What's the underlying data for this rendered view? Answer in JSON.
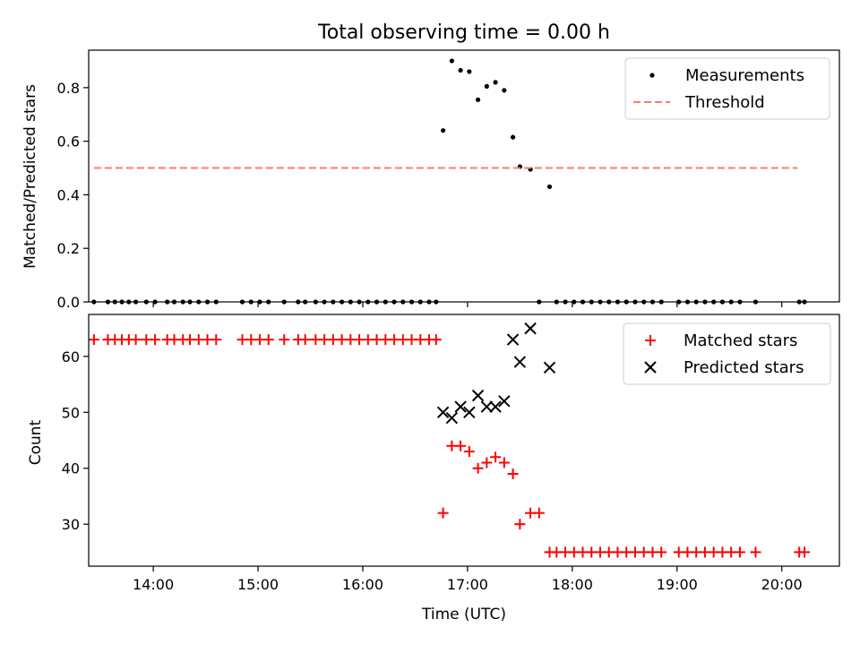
{
  "figure": {
    "title": "Total observing time = 0.00 h"
  },
  "chart_data": [
    {
      "type": "scatter",
      "panel": "top",
      "ylabel": "Matched/Predicted stars",
      "xlabel": "",
      "xlim": [
        "13:23",
        "20:33"
      ],
      "ylim": [
        0,
        0.94
      ],
      "yticks": [
        0.0,
        0.2,
        0.4,
        0.6,
        0.8
      ],
      "ytick_labels": [
        "0.0",
        "0.2",
        "0.4",
        "0.6",
        "0.8"
      ],
      "xticks": [
        "14:00",
        "15:00",
        "16:00",
        "17:00",
        "18:00",
        "19:00",
        "20:00"
      ],
      "show_xtick_labels": false,
      "legend_position": "top-right",
      "series": [
        {
          "name": "Measurements",
          "marker": "dot",
          "color": "#000000",
          "points": [
            [
              "13:26",
              0.0
            ],
            [
              "13:34",
              0.0
            ],
            [
              "13:38",
              0.0
            ],
            [
              "13:42",
              0.0
            ],
            [
              "13:46",
              0.0
            ],
            [
              "13:50",
              0.0
            ],
            [
              "13:56",
              0.0
            ],
            [
              "14:01",
              0.0
            ],
            [
              "14:08",
              0.0
            ],
            [
              "14:12",
              0.0
            ],
            [
              "14:17",
              0.0
            ],
            [
              "14:21",
              0.0
            ],
            [
              "14:26",
              0.0
            ],
            [
              "14:31",
              0.0
            ],
            [
              "14:36",
              0.0
            ],
            [
              "14:51",
              0.0
            ],
            [
              "14:56",
              0.0
            ],
            [
              "15:01",
              0.0
            ],
            [
              "15:06",
              0.0
            ],
            [
              "15:15",
              0.0
            ],
            [
              "15:23",
              0.0
            ],
            [
              "15:27",
              0.0
            ],
            [
              "15:33",
              0.0
            ],
            [
              "15:38",
              0.0
            ],
            [
              "15:43",
              0.0
            ],
            [
              "15:48",
              0.0
            ],
            [
              "15:53",
              0.0
            ],
            [
              "15:58",
              0.0
            ],
            [
              "16:03",
              0.0
            ],
            [
              "16:08",
              0.0
            ],
            [
              "16:13",
              0.0
            ],
            [
              "16:18",
              0.0
            ],
            [
              "16:23",
              0.0
            ],
            [
              "16:28",
              0.0
            ],
            [
              "16:33",
              0.0
            ],
            [
              "16:38",
              0.0
            ],
            [
              "16:42",
              0.0
            ],
            [
              "16:46",
              0.64
            ],
            [
              "16:51",
              0.9
            ],
            [
              "16:56",
              0.865
            ],
            [
              "17:01",
              0.86
            ],
            [
              "17:06",
              0.755
            ],
            [
              "17:11",
              0.805
            ],
            [
              "17:16",
              0.82
            ],
            [
              "17:21",
              0.79
            ],
            [
              "17:26",
              0.615
            ],
            [
              "17:30",
              0.505
            ],
            [
              "17:36",
              0.495
            ],
            [
              "17:47",
              0.43
            ],
            [
              "17:41",
              0.0
            ],
            [
              "17:51",
              0.0
            ],
            [
              "17:56",
              0.0
            ],
            [
              "18:01",
              0.0
            ],
            [
              "18:06",
              0.0
            ],
            [
              "18:11",
              0.0
            ],
            [
              "18:16",
              0.0
            ],
            [
              "18:21",
              0.0
            ],
            [
              "18:26",
              0.0
            ],
            [
              "18:31",
              0.0
            ],
            [
              "18:36",
              0.0
            ],
            [
              "18:41",
              0.0
            ],
            [
              "18:46",
              0.0
            ],
            [
              "18:51",
              0.0
            ],
            [
              "19:01",
              0.0
            ],
            [
              "19:06",
              0.0
            ],
            [
              "19:11",
              0.0
            ],
            [
              "19:16",
              0.0
            ],
            [
              "19:21",
              0.0
            ],
            [
              "19:26",
              0.0
            ],
            [
              "19:31",
              0.0
            ],
            [
              "19:36",
              0.0
            ],
            [
              "19:45",
              0.0
            ],
            [
              "20:10",
              0.0
            ],
            [
              "20:13",
              0.0
            ]
          ]
        },
        {
          "name": "Threshold",
          "line": "dashed",
          "color": "#ff7777",
          "points": [
            [
              "13:26",
              0.5
            ],
            [
              "20:09",
              0.5
            ]
          ]
        }
      ]
    },
    {
      "type": "scatter",
      "panel": "bottom",
      "ylabel": "Count",
      "xlabel": "Time (UTC)",
      "xlim": [
        "13:23",
        "20:33"
      ],
      "ylim": [
        22.5,
        67.5
      ],
      "yticks": [
        30,
        40,
        50,
        60
      ],
      "ytick_labels": [
        "30",
        "40",
        "50",
        "60"
      ],
      "xticks": [
        "14:00",
        "15:00",
        "16:00",
        "17:00",
        "18:00",
        "19:00",
        "20:00"
      ],
      "xtick_labels": [
        "14:00",
        "15:00",
        "16:00",
        "17:00",
        "18:00",
        "19:00",
        "20:00"
      ],
      "legend_position": "top-right",
      "series": [
        {
          "name": "Matched stars",
          "marker": "plus",
          "color": "#ff0000",
          "points": [
            [
              "13:26",
              63
            ],
            [
              "13:34",
              63
            ],
            [
              "13:38",
              63
            ],
            [
              "13:42",
              63
            ],
            [
              "13:46",
              63
            ],
            [
              "13:50",
              63
            ],
            [
              "13:56",
              63
            ],
            [
              "14:01",
              63
            ],
            [
              "14:08",
              63
            ],
            [
              "14:12",
              63
            ],
            [
              "14:17",
              63
            ],
            [
              "14:21",
              63
            ],
            [
              "14:26",
              63
            ],
            [
              "14:31",
              63
            ],
            [
              "14:36",
              63
            ],
            [
              "14:51",
              63
            ],
            [
              "14:56",
              63
            ],
            [
              "15:01",
              63
            ],
            [
              "15:06",
              63
            ],
            [
              "15:15",
              63
            ],
            [
              "15:23",
              63
            ],
            [
              "15:27",
              63
            ],
            [
              "15:33",
              63
            ],
            [
              "15:38",
              63
            ],
            [
              "15:43",
              63
            ],
            [
              "15:48",
              63
            ],
            [
              "15:53",
              63
            ],
            [
              "15:58",
              63
            ],
            [
              "16:03",
              63
            ],
            [
              "16:08",
              63
            ],
            [
              "16:13",
              63
            ],
            [
              "16:18",
              63
            ],
            [
              "16:23",
              63
            ],
            [
              "16:28",
              63
            ],
            [
              "16:33",
              63
            ],
            [
              "16:38",
              63
            ],
            [
              "16:42",
              63
            ],
            [
              "16:46",
              32
            ],
            [
              "16:51",
              44
            ],
            [
              "16:56",
              44
            ],
            [
              "17:01",
              43
            ],
            [
              "17:06",
              40
            ],
            [
              "17:11",
              41
            ],
            [
              "17:16",
              42
            ],
            [
              "17:21",
              41
            ],
            [
              "17:26",
              39
            ],
            [
              "17:30",
              30
            ],
            [
              "17:36",
              32
            ],
            [
              "17:41",
              32
            ],
            [
              "17:47",
              25
            ],
            [
              "17:51",
              25
            ],
            [
              "17:56",
              25
            ],
            [
              "18:01",
              25
            ],
            [
              "18:06",
              25
            ],
            [
              "18:11",
              25
            ],
            [
              "18:16",
              25
            ],
            [
              "18:21",
              25
            ],
            [
              "18:26",
              25
            ],
            [
              "18:31",
              25
            ],
            [
              "18:36",
              25
            ],
            [
              "18:41",
              25
            ],
            [
              "18:46",
              25
            ],
            [
              "18:51",
              25
            ],
            [
              "19:01",
              25
            ],
            [
              "19:06",
              25
            ],
            [
              "19:11",
              25
            ],
            [
              "19:16",
              25
            ],
            [
              "19:21",
              25
            ],
            [
              "19:26",
              25
            ],
            [
              "19:31",
              25
            ],
            [
              "19:36",
              25
            ],
            [
              "19:45",
              25
            ],
            [
              "20:10",
              25
            ],
            [
              "20:13",
              25
            ]
          ]
        },
        {
          "name": "Predicted stars",
          "marker": "x",
          "color": "#000000",
          "points": [
            [
              "16:46",
              50
            ],
            [
              "16:51",
              49
            ],
            [
              "16:56",
              51
            ],
            [
              "17:01",
              50
            ],
            [
              "17:06",
              53
            ],
            [
              "17:11",
              51
            ],
            [
              "17:16",
              51
            ],
            [
              "17:21",
              52
            ],
            [
              "17:26",
              63
            ],
            [
              "17:30",
              59
            ],
            [
              "17:36",
              65
            ],
            [
              "17:47",
              58
            ]
          ]
        }
      ]
    }
  ]
}
